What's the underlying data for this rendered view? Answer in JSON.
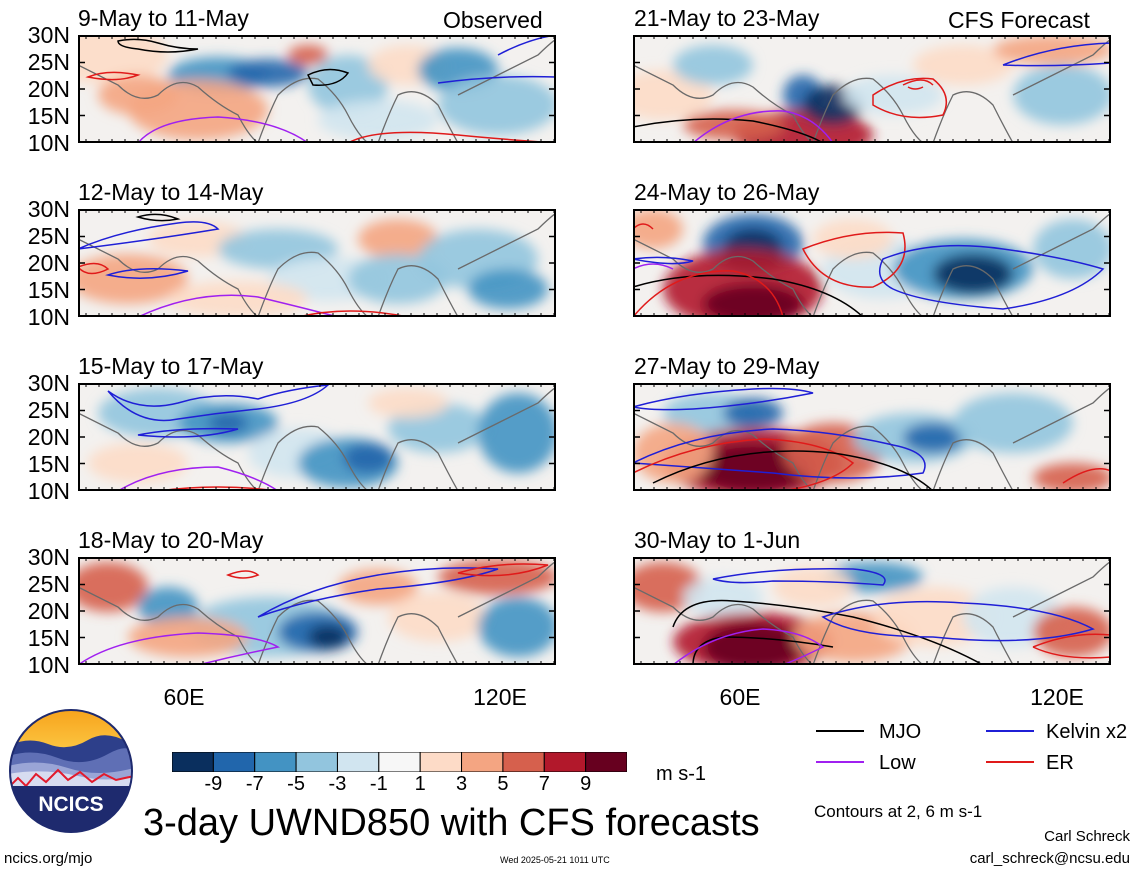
{
  "header": {
    "observed_label": "Observed",
    "forecast_label": "CFS Forecast"
  },
  "lat_labels": [
    "30N",
    "25N",
    "20N",
    "15N",
    "10N"
  ],
  "lon_labels": [
    "60E",
    "120E"
  ],
  "panels": [
    {
      "id": "p1",
      "title": "9-May to 11-May",
      "kind": "observed"
    },
    {
      "id": "p2",
      "title": "12-May to 14-May",
      "kind": "observed"
    },
    {
      "id": "p3",
      "title": "15-May to 17-May",
      "kind": "observed"
    },
    {
      "id": "p4",
      "title": "18-May to 20-May",
      "kind": "observed"
    },
    {
      "id": "p5",
      "title": "21-May to 23-May",
      "kind": "forecast"
    },
    {
      "id": "p6",
      "title": "24-May to 26-May",
      "kind": "forecast"
    },
    {
      "id": "p7",
      "title": "27-May to 29-May",
      "kind": "forecast"
    },
    {
      "id": "p8",
      "title": "30-May to 1-Jun",
      "kind": "forecast"
    }
  ],
  "colorbar": {
    "colors": [
      "#0a2f5e",
      "#2166ac",
      "#4393c3",
      "#92c5de",
      "#d1e5f0",
      "#f7f7f7",
      "#fddbc7",
      "#f4a582",
      "#d6604d",
      "#b2182b",
      "#67001f"
    ],
    "labels": [
      "-9",
      "-7",
      "-5",
      "-3",
      "-1",
      "1",
      "3",
      "5",
      "7",
      "9"
    ],
    "units": "m s-1"
  },
  "legend": {
    "items": [
      {
        "name": "MJO",
        "color": "#000000"
      },
      {
        "name": "Kelvin x2",
        "color": "#1f1fd6"
      },
      {
        "name": "Low",
        "color": "#a020f0"
      },
      {
        "name": "ER",
        "color": "#e01a1a"
      }
    ],
    "contours_note": "Contours at 2, 6 m s-1"
  },
  "title": "3-day UWND850 with CFS forecasts",
  "logo_text": "NCICS",
  "footer": {
    "url": "ncics.org/mjo",
    "timestamp": "Wed 2025-05-21 1011 UTC",
    "author": "Carl Schreck",
    "email": "carl_schreck@ncsu.edu"
  }
}
